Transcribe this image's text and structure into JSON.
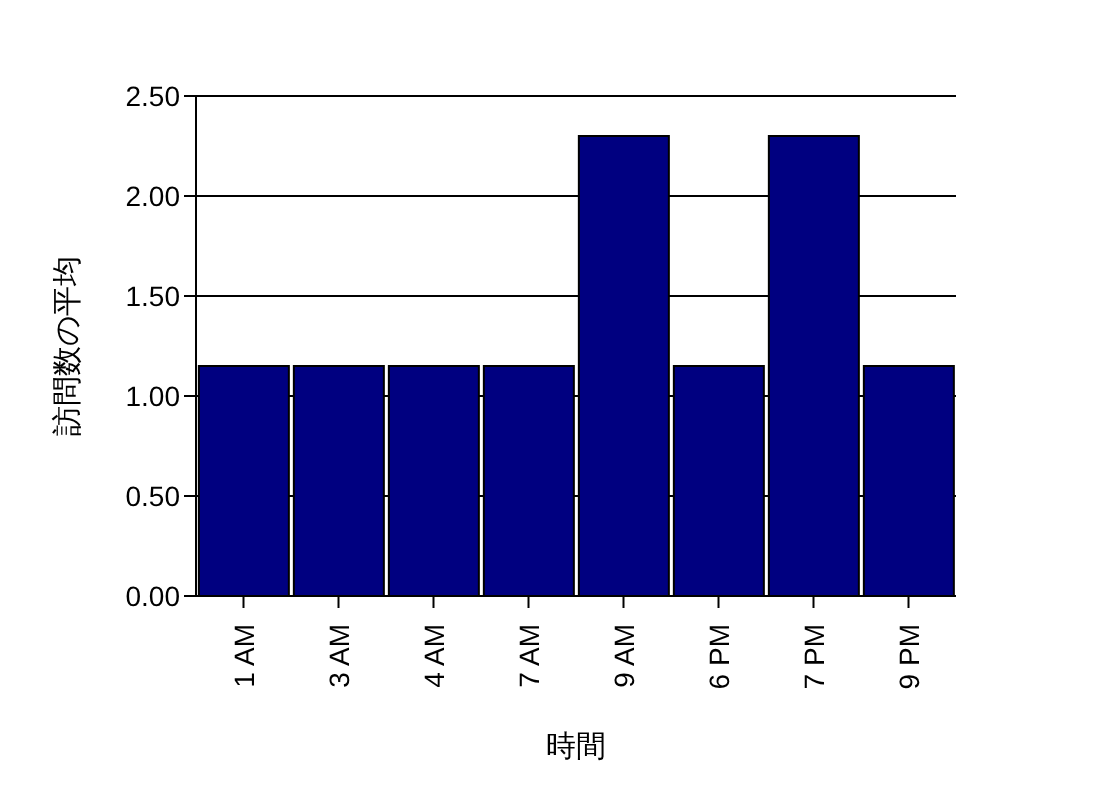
{
  "chart_data": {
    "type": "bar",
    "xlabel": "時間",
    "ylabel": "訪問数の平均",
    "categories": [
      "1 AM",
      "3 AM",
      "4 AM",
      "7 AM",
      "9 AM",
      "6 PM",
      "7 PM",
      "9 PM"
    ],
    "values": [
      1.15,
      1.15,
      1.15,
      1.15,
      2.3,
      1.15,
      2.3,
      1.15
    ],
    "color": "#000080",
    "ylim": [
      0,
      2.5
    ],
    "yticks": [
      {
        "value": 0,
        "label": "0.00"
      },
      {
        "value": 0.5,
        "label": "0.50"
      },
      {
        "value": 1,
        "label": "1.00"
      },
      {
        "value": 1.5,
        "label": "1.50"
      },
      {
        "value": 2,
        "label": "2.00"
      },
      {
        "value": 2.5,
        "label": "2.50"
      }
    ],
    "grid": "y"
  }
}
